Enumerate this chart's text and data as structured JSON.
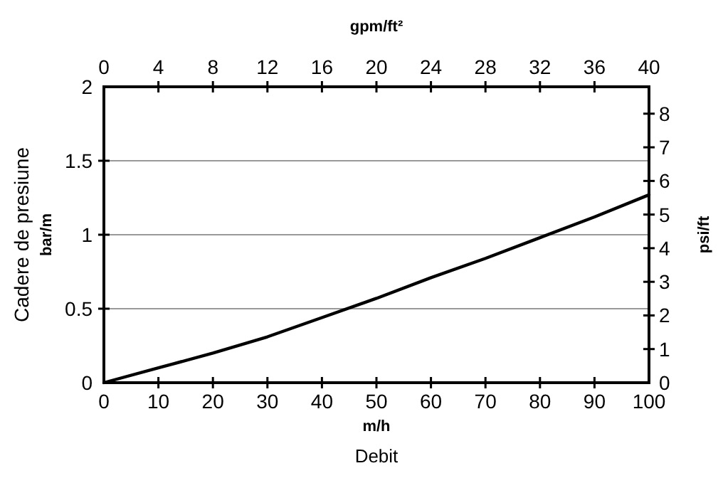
{
  "chart_data": {
    "type": "line",
    "xlabel": "Debit",
    "x2label": "gpm/ft²",
    "ylabel": "Cadere de presiune",
    "y2label": "psi/ft",
    "annotations": [
      "m/h",
      "bar/m"
    ],
    "x": [
      0,
      10,
      20,
      30,
      40,
      50,
      60,
      70,
      80,
      90,
      100
    ],
    "series": [
      {
        "color": "#000000",
        "values": [
          0,
          0.1,
          0.2,
          0.31,
          0.44,
          0.57,
          0.71,
          0.84,
          0.98,
          1.12,
          1.27
        ]
      }
    ],
    "xlim": [
      0,
      100
    ],
    "xticks": [
      0,
      10,
      20,
      30,
      40,
      50,
      60,
      70,
      80,
      90,
      100
    ],
    "x2lim": [
      0,
      40
    ],
    "x2ticks": [
      0,
      4,
      8,
      12,
      16,
      20,
      24,
      28,
      32,
      36,
      40
    ],
    "ylim": [
      0,
      2
    ],
    "yticks": [
      0,
      0.5,
      1,
      1.5,
      2
    ],
    "y2lim": [
      0,
      8.8
    ],
    "y2ticks": [
      0,
      1,
      2,
      3,
      4,
      5,
      6,
      7,
      8
    ],
    "grid": "y",
    "marker": "none",
    "line_style": "solid"
  }
}
